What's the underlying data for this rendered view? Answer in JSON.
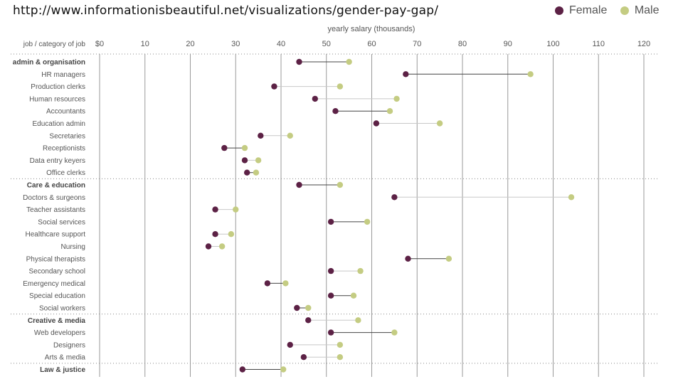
{
  "url_text": "http://www.informationisbeautiful.net/visualizations/gender-pay-gap/",
  "legend": [
    {
      "label": "Female",
      "color": "#5c2145"
    },
    {
      "label": "Male",
      "color": "#c4cc82"
    }
  ],
  "chart_data": {
    "type": "dumbbell",
    "title": "yearly salary (thousands)",
    "xlabel": "yearly salary (thousands)",
    "ylabel": "job / category of job",
    "x_ticks": [
      "$0",
      "10",
      "20",
      "30",
      "40",
      "50",
      "60",
      "70",
      "80",
      "90",
      "100",
      "110",
      "120"
    ],
    "xlim": [
      0,
      120
    ],
    "colors": {
      "female": "#5c2145",
      "male": "#c4cc82",
      "gap_line_dark": "#555555",
      "gap_line_light": "#cccccc"
    },
    "rows": [
      {
        "label": "admin & organisation",
        "heading": true,
        "female": 44,
        "male": 55
      },
      {
        "label": "HR managers",
        "heading": false,
        "female": 67.5,
        "male": 95
      },
      {
        "label": "Production clerks",
        "heading": false,
        "female": 38.5,
        "male": 53
      },
      {
        "label": "Human resources",
        "heading": false,
        "female": 47.5,
        "male": 65.5
      },
      {
        "label": "Accountants",
        "heading": false,
        "female": 52,
        "male": 64
      },
      {
        "label": "Education admin",
        "heading": false,
        "female": 61,
        "male": 75
      },
      {
        "label": "Secretaries",
        "heading": false,
        "female": 35.5,
        "male": 42
      },
      {
        "label": "Receptionists",
        "heading": false,
        "female": 27.5,
        "male": 32
      },
      {
        "label": "Data entry keyers",
        "heading": false,
        "female": 32,
        "male": 35
      },
      {
        "label": "Office clerks",
        "heading": false,
        "female": 32.5,
        "male": 34.5
      },
      {
        "label": "Care & education",
        "heading": true,
        "female": 44,
        "male": 53
      },
      {
        "label": "Doctors & surgeons",
        "heading": false,
        "female": 65,
        "male": 104
      },
      {
        "label": "Teacher assistants",
        "heading": false,
        "female": 25.5,
        "male": 30
      },
      {
        "label": "Social services",
        "heading": false,
        "female": 51,
        "male": 59
      },
      {
        "label": "Healthcare support",
        "heading": false,
        "female": 25.5,
        "male": 29
      },
      {
        "label": "Nursing",
        "heading": false,
        "female": 24,
        "male": 27
      },
      {
        "label": "Physical therapists",
        "heading": false,
        "female": 68,
        "male": 77
      },
      {
        "label": "Secondary school",
        "heading": false,
        "female": 51,
        "male": 57.5
      },
      {
        "label": "Emergency medical",
        "heading": false,
        "female": 37,
        "male": 41
      },
      {
        "label": "Special education",
        "heading": false,
        "female": 51,
        "male": 56
      },
      {
        "label": "Social workers",
        "heading": false,
        "female": 43.5,
        "male": 46
      },
      {
        "label": "Creative & media",
        "heading": true,
        "female": 46,
        "male": 57
      },
      {
        "label": "Web developers",
        "heading": false,
        "female": 51,
        "male": 65
      },
      {
        "label": "Designers",
        "heading": false,
        "female": 42,
        "male": 53
      },
      {
        "label": "Arts & media",
        "heading": false,
        "female": 45,
        "male": 53
      },
      {
        "label": "Law & justice",
        "heading": true,
        "female": 31.5,
        "male": 40.5
      }
    ]
  }
}
